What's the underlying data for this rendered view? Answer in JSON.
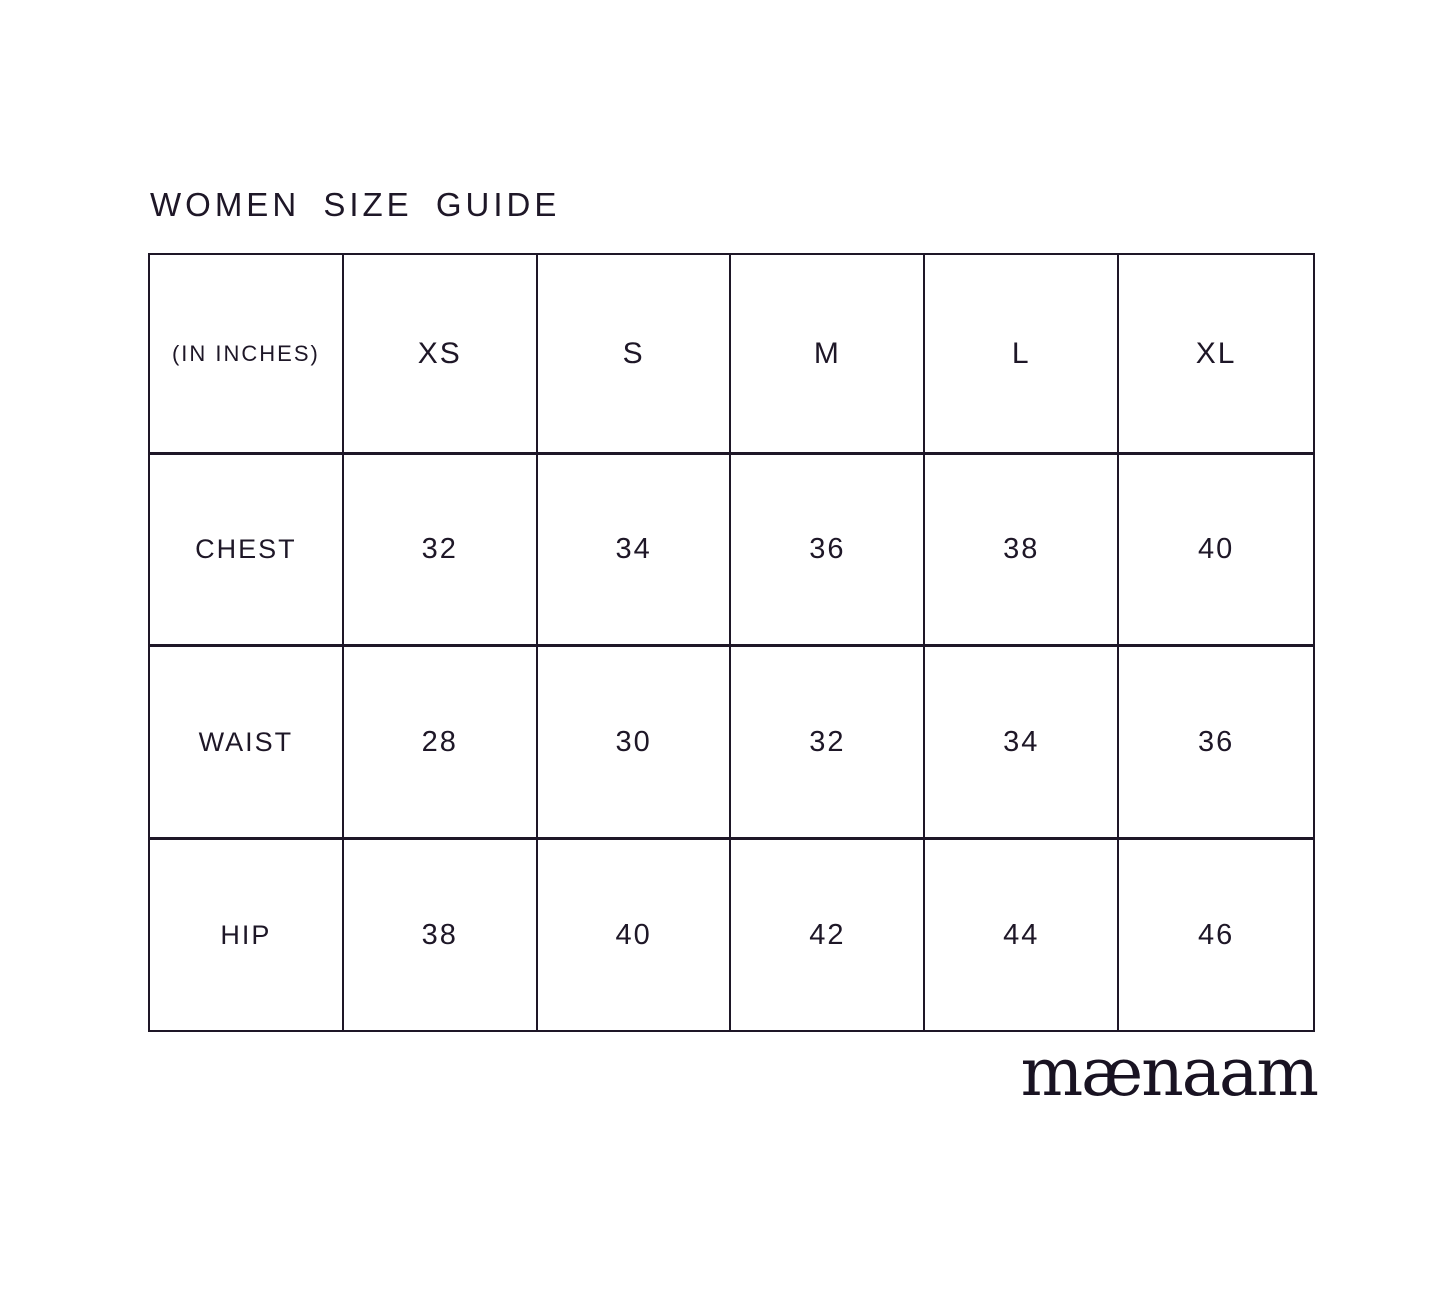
{
  "title": "WOMEN SIZE GUIDE",
  "brand_logo": "mænaam",
  "colors": {
    "ink": "#1e1727",
    "background": "#ffffff"
  },
  "table": {
    "header": [
      "(IN INCHES)",
      "XS",
      "S",
      "M",
      "L",
      "XL"
    ],
    "rows": [
      {
        "cells": [
          "CHEST",
          "32",
          "34",
          "36",
          "38",
          "40"
        ]
      },
      {
        "cells": [
          "WAIST",
          "28",
          "30",
          "32",
          "34",
          "36"
        ]
      },
      {
        "cells": [
          "HIP",
          "38",
          "40",
          "42",
          "44",
          "46"
        ]
      }
    ]
  },
  "chart_data": {
    "type": "table",
    "title": "WOMEN SIZE GUIDE",
    "unit": "inches",
    "columns": [
      "XS",
      "S",
      "M",
      "L",
      "XL"
    ],
    "rows": [
      {
        "measurement": "CHEST",
        "values": [
          32,
          34,
          36,
          38,
          40
        ]
      },
      {
        "measurement": "WAIST",
        "values": [
          28,
          30,
          32,
          34,
          36
        ]
      },
      {
        "measurement": "HIP",
        "values": [
          38,
          40,
          42,
          44,
          46
        ]
      }
    ]
  }
}
